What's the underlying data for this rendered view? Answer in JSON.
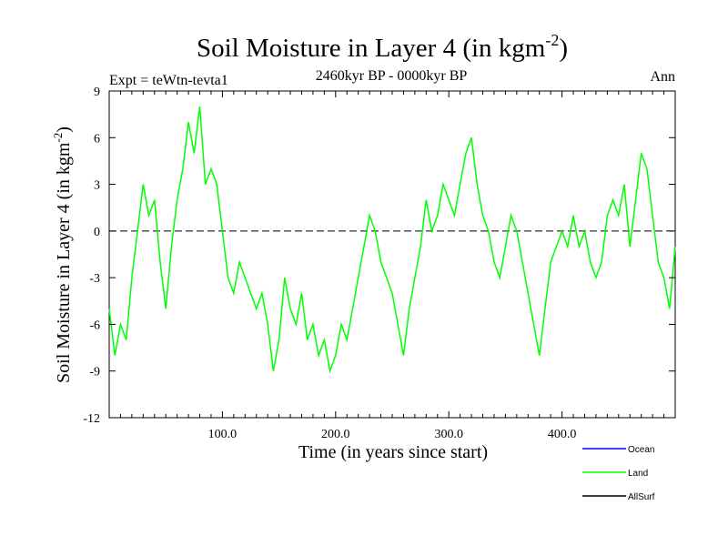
{
  "chart_data": {
    "type": "line",
    "title": "Soil Moisture in Layer 4 (in kgm",
    "title_superscript": "-2",
    "title_suffix": ")",
    "subtitle": "2460kyr BP - 0000kyr BP",
    "experiment_label": "Expt = teWtn-tevta1",
    "season_label": "Ann",
    "ylabel": "Soil Moisture in Layer 4 (in kgm",
    "ylabel_superscript": "-2",
    "ylabel_suffix": ")",
    "xlabel": "Time (in years since start)",
    "xlim": [
      0,
      500
    ],
    "ylim": [
      -12,
      9
    ],
    "x_ticks": [
      100,
      200,
      300,
      400
    ],
    "x_tick_labels": [
      "100.0",
      "200.0",
      "300.0",
      "400.0"
    ],
    "y_ticks": [
      -12,
      -9,
      -6,
      -3,
      0,
      3,
      6,
      9
    ],
    "y_tick_labels": [
      "-12",
      "-9",
      "-6",
      "-3",
      "0",
      "3",
      "6",
      "9"
    ],
    "zero_line": true,
    "legend": [
      {
        "name": "Ocean",
        "color": "#0000ff"
      },
      {
        "name": "Land",
        "color": "#00ff00"
      },
      {
        "name": "AllSurf",
        "color": "#000000"
      }
    ],
    "series": [
      {
        "name": "Land",
        "color": "#00ff00",
        "x": [
          0,
          5,
          10,
          15,
          20,
          25,
          30,
          35,
          40,
          45,
          50,
          55,
          60,
          65,
          70,
          75,
          80,
          85,
          90,
          95,
          100,
          105,
          110,
          115,
          120,
          125,
          130,
          135,
          140,
          145,
          150,
          155,
          160,
          165,
          170,
          175,
          180,
          185,
          190,
          195,
          200,
          205,
          210,
          215,
          220,
          225,
          230,
          235,
          240,
          245,
          250,
          255,
          260,
          265,
          270,
          275,
          280,
          285,
          290,
          295,
          300,
          305,
          310,
          315,
          320,
          325,
          330,
          335,
          340,
          345,
          350,
          355,
          360,
          365,
          370,
          375,
          380,
          385,
          390,
          395,
          400,
          405,
          410,
          415,
          420,
          425,
          430,
          435,
          440,
          445,
          450,
          455,
          460,
          465,
          470,
          475,
          480,
          485,
          490,
          495,
          500
        ],
        "values": [
          -5,
          -8,
          -6,
          -7,
          -3,
          0,
          3,
          1,
          2,
          -2,
          -5,
          -1,
          2,
          4,
          7,
          5,
          8,
          3,
          4,
          3,
          0,
          -3,
          -4,
          -2,
          -3,
          -4,
          -5,
          -4,
          -6,
          -9,
          -7,
          -3,
          -5,
          -6,
          -4,
          -7,
          -6,
          -8,
          -7,
          -9,
          -8,
          -6,
          -7,
          -5,
          -3,
          -1,
          1,
          0,
          -2,
          -3,
          -4,
          -6,
          -8,
          -5,
          -3,
          -1,
          2,
          0,
          1,
          3,
          2,
          1,
          3,
          5,
          6,
          3,
          1,
          0,
          -2,
          -3,
          -1,
          1,
          0,
          -2,
          -4,
          -6,
          -8,
          -5,
          -2,
          -1,
          0,
          -1,
          1,
          -1,
          0,
          -2,
          -3,
          -2,
          1,
          2,
          1,
          3,
          -1,
          2,
          5,
          4,
          1,
          -2,
          -3,
          -5,
          -1
        ]
      }
    ]
  }
}
